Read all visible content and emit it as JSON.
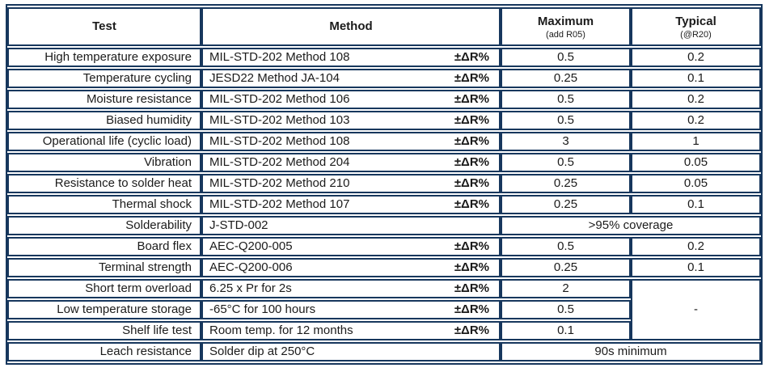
{
  "table": {
    "columns": {
      "test": "Test",
      "method": "Method",
      "maximum": {
        "label": "Maximum",
        "sub": "(add R05)"
      },
      "typical": {
        "label": "Typical",
        "sub": "(@R20)"
      }
    },
    "colors": {
      "border": "#17375d",
      "text": "#1b1b1b"
    },
    "rows": [
      {
        "test": "High temperature exposure",
        "method": "MIL-STD-202 Method 108",
        "delta": "±ΔR%",
        "maximum": "0.5",
        "typical": "0.2"
      },
      {
        "test": "Temperature cycling",
        "method": "JESD22 Method JA-104",
        "delta": "±ΔR%",
        "maximum": "0.25",
        "typical": "0.1"
      },
      {
        "test": "Moisture resistance",
        "method": "MIL-STD-202 Method 106",
        "delta": "±ΔR%",
        "maximum": "0.5",
        "typical": "0.2"
      },
      {
        "test": "Biased humidity",
        "method": "MIL-STD-202 Method 103",
        "delta": "±ΔR%",
        "maximum": "0.5",
        "typical": "0.2"
      },
      {
        "test": "Operational life (cyclic load)",
        "method": "MIL-STD-202 Method 108",
        "delta": "±ΔR%",
        "maximum": "3",
        "typical": "1"
      },
      {
        "test": "Vibration",
        "method": "MIL-STD-202 Method 204",
        "delta": "±ΔR%",
        "maximum": "0.5",
        "typical": "0.05"
      },
      {
        "test": "Resistance to solder heat",
        "method": "MIL-STD-202 Method 210",
        "delta": "±ΔR%",
        "maximum": "0.25",
        "typical": "0.05"
      },
      {
        "test": "Thermal shock",
        "method": "MIL-STD-202 Method 107",
        "delta": "±ΔR%",
        "maximum": "0.25",
        "typical": "0.1"
      },
      {
        "test": "Solderability",
        "method": "J-STD-002",
        "delta": "",
        "merged": ">95% coverage"
      },
      {
        "test": "Board flex",
        "method": "AEC-Q200-005",
        "delta": "±ΔR%",
        "maximum": "0.5",
        "typical": "0.2"
      },
      {
        "test": "Terminal strength",
        "method": "AEC-Q200-006",
        "delta": "±ΔR%",
        "maximum": "0.25",
        "typical": "0.1"
      },
      {
        "test": "Short term overload",
        "method": "6.25 x Pr for 2s",
        "delta": "±ΔR%",
        "maximum": "2",
        "typical_merged": "-"
      },
      {
        "test": "Low temperature storage",
        "method": "-65°C for 100 hours",
        "delta": "±ΔR%",
        "maximum": "0.5"
      },
      {
        "test": "Shelf life test",
        "method": "Room temp. for 12 months",
        "delta": "±ΔR%",
        "maximum": "0.1"
      },
      {
        "test": "Leach resistance",
        "method": "Solder dip at 250°C",
        "delta": "",
        "merged": "90s minimum"
      }
    ]
  }
}
